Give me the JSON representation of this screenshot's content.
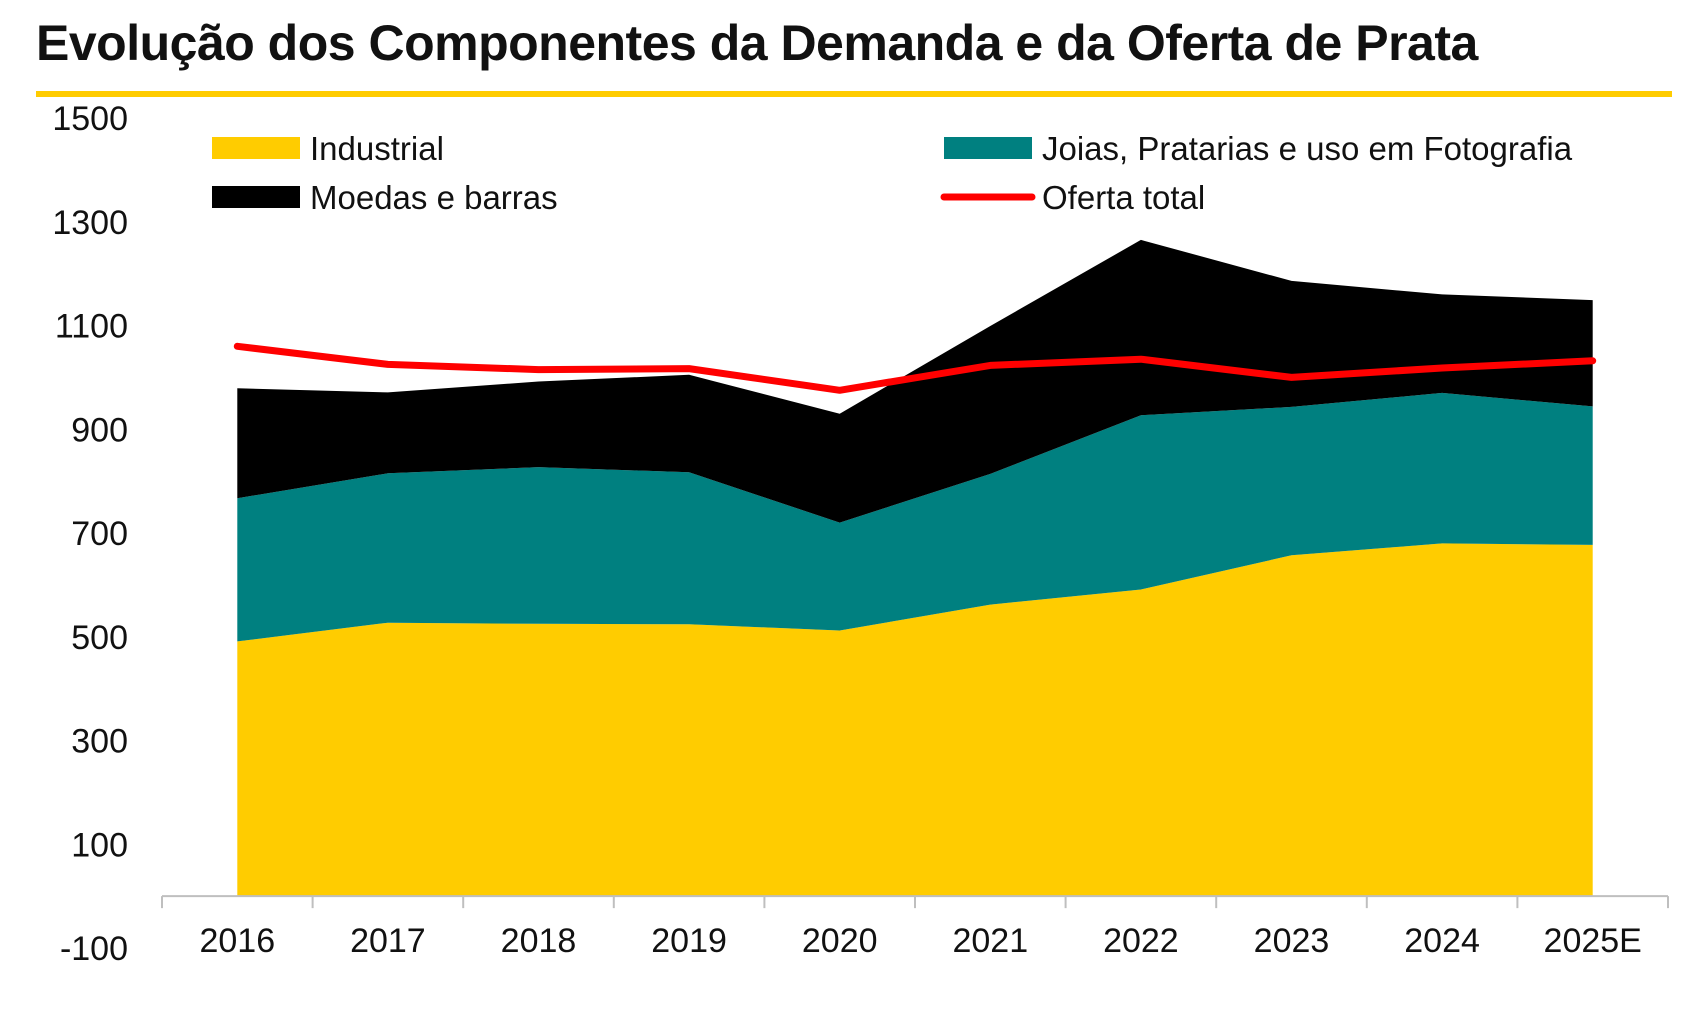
{
  "chart_data": {
    "type": "area",
    "title": "Evolução dos Componentes da Demanda e da Oferta de Prata",
    "categories": [
      "2016",
      "2017",
      "2018",
      "2019",
      "2020",
      "2021",
      "2022",
      "2023",
      "2024",
      "2025E"
    ],
    "ylim": [
      -100,
      1500
    ],
    "yticks": [
      "-100",
      "100",
      "300",
      "500",
      "700",
      "900",
      "1100",
      "1300",
      "1500"
    ],
    "yticks_values": [
      -100,
      100,
      300,
      500,
      700,
      900,
      1100,
      1300,
      1500
    ],
    "grid": false,
    "legend_position": "top",
    "series": [
      {
        "name": "Industrial",
        "kind": "area",
        "color": "#ffcc00",
        "values": [
          491,
          527,
          525,
          524,
          512,
          562,
          591,
          657,
          680,
          677
        ]
      },
      {
        "name": "Joias, Pratarias e uso em Fotografia",
        "kind": "area",
        "color": "#008080",
        "values": [
          276,
          288,
          302,
          293,
          208,
          252,
          336,
          286,
          290,
          267
        ]
      },
      {
        "name": "Moedas e barras",
        "kind": "area",
        "color": "#000000",
        "values": [
          212,
          156,
          165,
          188,
          210,
          285,
          338,
          243,
          190,
          205
        ]
      },
      {
        "name": "Oferta total",
        "kind": "line",
        "color": "#ff0000",
        "values": [
          1060,
          1025,
          1015,
          1017,
          975,
          1023,
          1035,
          1000,
          1018,
          1032
        ]
      }
    ]
  }
}
